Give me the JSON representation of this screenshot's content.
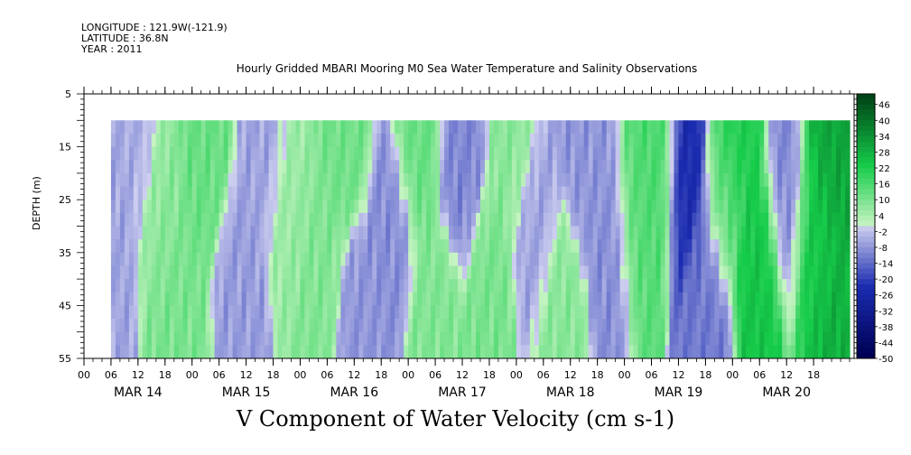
{
  "meta": {
    "longitude": "LONGITUDE : 121.9W(-121.9)",
    "latitude": "LATITUDE : 36.8N",
    "year": "YEAR : 2011"
  },
  "chart_data": {
    "type": "heatmap",
    "title": "Hourly Gridded MBARI Mooring M0 Sea Water Temperature and Salinity Observations",
    "subtitle": "V Component of Water Velocity (cm s-1)",
    "ylabel": "DEPTH (m)",
    "xlabel": "",
    "x_hour_ticks": [
      "00",
      "06",
      "12",
      "18",
      "00",
      "06",
      "12",
      "18",
      "00",
      "06",
      "12",
      "18",
      "00",
      "06",
      "12",
      "18",
      "00",
      "06",
      "12",
      "18",
      "00",
      "06",
      "12",
      "18",
      "00",
      "06",
      "12",
      "18"
    ],
    "x_day_labels": [
      "MAR 14",
      "MAR 15",
      "MAR 16",
      "MAR 17",
      "MAR 18",
      "MAR 19",
      "MAR 20"
    ],
    "y_ticks": [
      5,
      15,
      25,
      35,
      45,
      55
    ],
    "ylim": [
      55,
      5
    ],
    "data_depth_range": [
      10,
      55
    ],
    "data_time_range_hours": [
      6,
      170
    ],
    "colorbar_ticks": [
      46,
      40,
      34,
      28,
      22,
      16,
      10,
      4,
      -2,
      -8,
      -14,
      -20,
      -26,
      -32,
      -38,
      -44,
      -50
    ],
    "colorbar_range": [
      -50,
      50
    ],
    "colormap": {
      "negative": [
        "#cfd0f0",
        "#1b2cb0",
        "#020660"
      ],
      "positive": [
        "#c8f4c4",
        "#16cc4a",
        "#02561e"
      ]
    },
    "features": [
      {
        "time": 6,
        "depth": 30,
        "value": -6
      },
      {
        "time": 12,
        "depth": 15,
        "value": -5
      },
      {
        "time": 17,
        "depth": 25,
        "value": 8
      },
      {
        "time": 22,
        "depth": 45,
        "value": 10
      },
      {
        "time": 27,
        "depth": 20,
        "value": 12
      },
      {
        "time": 34,
        "depth": 40,
        "value": -7
      },
      {
        "time": 40,
        "depth": 15,
        "value": -6
      },
      {
        "time": 46,
        "depth": 25,
        "value": 6
      },
      {
        "time": 52,
        "depth": 35,
        "value": 9
      },
      {
        "time": 58,
        "depth": 15,
        "value": 11
      },
      {
        "time": 62,
        "depth": 45,
        "value": -8
      },
      {
        "time": 68,
        "depth": 30,
        "value": -9
      },
      {
        "time": 74,
        "depth": 15,
        "value": 12
      },
      {
        "time": 78,
        "depth": 45,
        "value": 9
      },
      {
        "time": 84,
        "depth": 20,
        "value": -10
      },
      {
        "time": 90,
        "depth": 40,
        "value": 10
      },
      {
        "time": 95,
        "depth": 15,
        "value": 8
      },
      {
        "time": 100,
        "depth": 30,
        "value": -6
      },
      {
        "time": 106,
        "depth": 45,
        "value": 8
      },
      {
        "time": 112,
        "depth": 20,
        "value": -8
      },
      {
        "time": 117,
        "depth": 35,
        "value": -9
      },
      {
        "time": 123,
        "depth": 30,
        "value": 14
      },
      {
        "time": 127,
        "depth": 20,
        "value": 16
      },
      {
        "time": 134,
        "depth": 22,
        "value": -24
      },
      {
        "time": 138,
        "depth": 40,
        "value": -12
      },
      {
        "time": 142,
        "depth": 25,
        "value": 12
      },
      {
        "time": 145,
        "depth": 15,
        "value": 22
      },
      {
        "time": 150,
        "depth": 35,
        "value": 24
      },
      {
        "time": 156,
        "depth": 25,
        "value": -10
      },
      {
        "time": 162,
        "depth": 30,
        "value": 24
      },
      {
        "time": 166,
        "depth": 15,
        "value": 30
      },
      {
        "time": 169,
        "depth": 50,
        "value": 28
      }
    ]
  }
}
